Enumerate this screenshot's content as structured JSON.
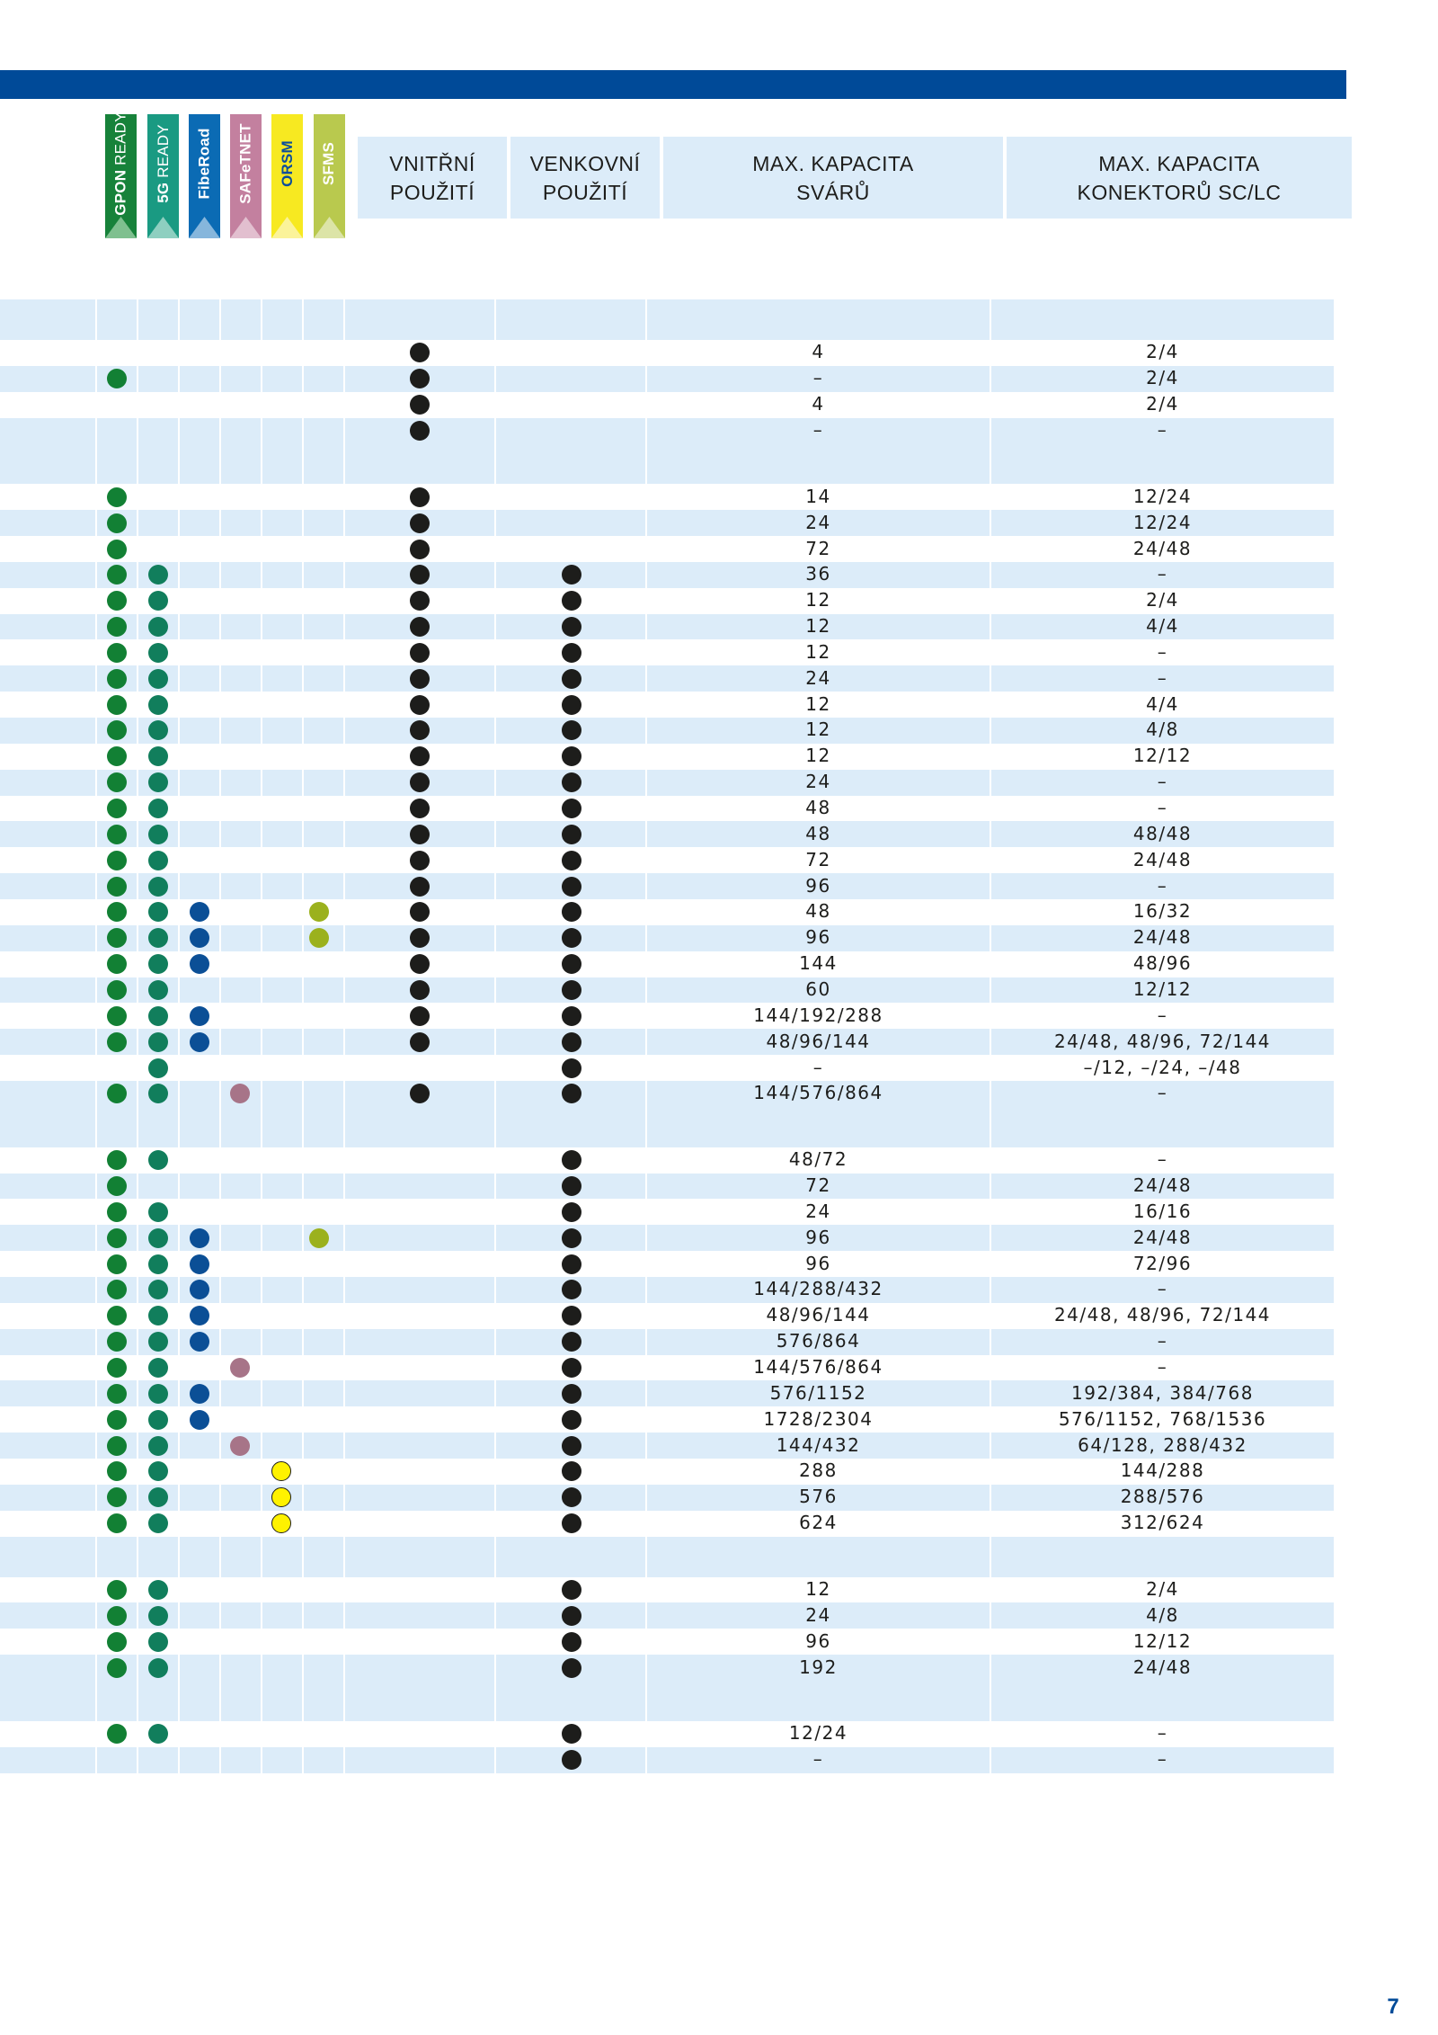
{
  "brand_colors": {
    "bar": "#004a98",
    "header_bg": "#dcecf9",
    "row_bg": "#dcecf9"
  },
  "badges": [
    {
      "id": "gpon",
      "strong": "GPON",
      "light": " READY",
      "bg": "#17823a",
      "fg": "#ffffff",
      "arrow": "#7fc08f"
    },
    {
      "id": "5g",
      "strong": "5G",
      "light": " READY",
      "bg": "#1a9a82",
      "fg": "#ffffff",
      "arrow": "#8ecfc0"
    },
    {
      "id": "fiberoad",
      "strong": "FibeRoad",
      "light": "",
      "bg": "#0b6bb4",
      "fg": "#ffffff",
      "arrow": "#86b6dc"
    },
    {
      "id": "safetnet",
      "strong": "SAFeTNET",
      "light": "",
      "bg": "#c3809f",
      "fg": "#ffffff",
      "arrow": "#e2bfcf"
    },
    {
      "id": "orsm",
      "strong": "ORSM",
      "light": "",
      "bg": "#f7e921",
      "fg": "#0a4d9c",
      "arrow": "#fbf39a"
    },
    {
      "id": "sfms",
      "strong": "SFMS",
      "light": "",
      "bg": "#b9c94e",
      "fg": "#ffffff",
      "arrow": "#dce4a7"
    }
  ],
  "headers": {
    "indoor": [
      "VNITŘNÍ",
      "POUŽITÍ"
    ],
    "outdoor": [
      "VENKOVNÍ",
      "POUŽITÍ"
    ],
    "splices": [
      "MAX. KAPACITA",
      "SVÁRŮ"
    ],
    "connectors": [
      "MAX. KAPACITA",
      "KONEKTORŮ SC/LC"
    ]
  },
  "dot_colors": {
    "g": "#128034",
    "t": "#117e5c",
    "b": "#0b4f96",
    "p": "#a77488",
    "y": "#fff200",
    "l": "#9bb11d",
    "k": "#1d1d1b"
  },
  "rows": [
    {
      "sec": true
    },
    {
      "dots": "",
      "in": true,
      "out": false,
      "spl": "4",
      "con": "2/4"
    },
    {
      "dots": "g",
      "in": true,
      "out": false,
      "spl": "–",
      "con": "2/4"
    },
    {
      "dots": "",
      "in": true,
      "out": false,
      "spl": "4",
      "con": "2/4"
    },
    {
      "dots": "",
      "in": true,
      "out": false,
      "spl": "–",
      "con": "–"
    },
    {
      "sec": true
    },
    {
      "dots": "g",
      "in": true,
      "out": false,
      "spl": "14",
      "con": "12/24"
    },
    {
      "dots": "g",
      "in": true,
      "out": false,
      "spl": "24",
      "con": "12/24"
    },
    {
      "dots": "g",
      "in": true,
      "out": false,
      "spl": "72",
      "con": "24/48"
    },
    {
      "dots": "gt",
      "in": true,
      "out": true,
      "spl": "36",
      "con": "–"
    },
    {
      "dots": "gt",
      "in": true,
      "out": true,
      "spl": "12",
      "con": "2/4"
    },
    {
      "dots": "gt",
      "in": true,
      "out": true,
      "spl": "12",
      "con": "4/4"
    },
    {
      "dots": "gt",
      "in": true,
      "out": true,
      "spl": "12",
      "con": "–"
    },
    {
      "dots": "gt",
      "in": true,
      "out": true,
      "spl": "24",
      "con": "–"
    },
    {
      "dots": "gt",
      "in": true,
      "out": true,
      "spl": "12",
      "con": "4/4"
    },
    {
      "dots": "gt",
      "in": true,
      "out": true,
      "spl": "12",
      "con": "4/8"
    },
    {
      "dots": "gt",
      "in": true,
      "out": true,
      "spl": "12",
      "con": "12/12"
    },
    {
      "dots": "gt",
      "in": true,
      "out": true,
      "spl": "24",
      "con": "–"
    },
    {
      "dots": "gt",
      "in": true,
      "out": true,
      "spl": "48",
      "con": "–"
    },
    {
      "dots": "gt",
      "in": true,
      "out": true,
      "spl": "48",
      "con": "48/48"
    },
    {
      "dots": "gt",
      "in": true,
      "out": true,
      "spl": "72",
      "con": "24/48"
    },
    {
      "dots": "gt",
      "in": true,
      "out": true,
      "spl": "96",
      "con": "–"
    },
    {
      "dots": "gtbl",
      "in": true,
      "out": true,
      "spl": "48",
      "con": "16/32"
    },
    {
      "dots": "gtbl",
      "in": true,
      "out": true,
      "spl": "96",
      "con": "24/48"
    },
    {
      "dots": "gtb",
      "in": true,
      "out": true,
      "spl": "144",
      "con": "48/96"
    },
    {
      "dots": "gt",
      "in": true,
      "out": true,
      "spl": "60",
      "con": "12/12"
    },
    {
      "dots": "gtb",
      "in": true,
      "out": true,
      "spl": "144/192/288",
      "con": "–"
    },
    {
      "dots": "gtb",
      "in": true,
      "out": true,
      "spl": "48/96/144",
      "con": "24/48, 48/96, 72/144"
    },
    {
      "dots": "t",
      "in": false,
      "out": true,
      "spl": "–",
      "con": "–/12, –/24, –/48"
    },
    {
      "dots": "gtp",
      "in": true,
      "out": true,
      "spl": "144/576/864",
      "con": "–"
    },
    {
      "sec": true
    },
    {
      "dots": "gt",
      "in": false,
      "out": true,
      "spl": "48/72",
      "con": "–"
    },
    {
      "dots": "g",
      "in": false,
      "out": true,
      "spl": "72",
      "con": "24/48"
    },
    {
      "dots": "gt",
      "in": false,
      "out": true,
      "spl": "24",
      "con": "16/16"
    },
    {
      "dots": "gtbl",
      "in": false,
      "out": true,
      "spl": "96",
      "con": "24/48"
    },
    {
      "dots": "gtb",
      "in": false,
      "out": true,
      "spl": "96",
      "con": "72/96"
    },
    {
      "dots": "gtb",
      "in": false,
      "out": true,
      "spl": "144/288/432",
      "con": "–"
    },
    {
      "dots": "gtb",
      "in": false,
      "out": true,
      "spl": "48/96/144",
      "con": "24/48, 48/96, 72/144"
    },
    {
      "dots": "gtb",
      "in": false,
      "out": true,
      "spl": "576/864",
      "con": "–"
    },
    {
      "dots": "gtp",
      "in": false,
      "out": true,
      "spl": "144/576/864",
      "con": "–"
    },
    {
      "dots": "gtb",
      "in": false,
      "out": true,
      "spl": "576/1152",
      "con": "192/384, 384/768"
    },
    {
      "dots": "gtb",
      "in": false,
      "out": true,
      "spl": "1728/2304",
      "con": "576/1152, 768/1536"
    },
    {
      "dots": "gtp",
      "in": false,
      "out": true,
      "spl": "144/432",
      "con": "64/128, 288/432"
    },
    {
      "dots": "gty",
      "in": false,
      "out": true,
      "spl": "288",
      "con": "144/288"
    },
    {
      "dots": "gty",
      "in": false,
      "out": true,
      "spl": "576",
      "con": "288/576"
    },
    {
      "dots": "gty",
      "in": false,
      "out": true,
      "spl": "624",
      "con": "312/624"
    },
    {
      "sec": true
    },
    {
      "dots": "gt",
      "in": false,
      "out": true,
      "spl": "12",
      "con": "2/4"
    },
    {
      "dots": "gt",
      "in": false,
      "out": true,
      "spl": "24",
      "con": "4/8"
    },
    {
      "dots": "gt",
      "in": false,
      "out": true,
      "spl": "96",
      "con": "12/12"
    },
    {
      "dots": "gt",
      "in": false,
      "out": true,
      "spl": "192",
      "con": "24/48"
    },
    {
      "sec": true
    },
    {
      "dots": "gt",
      "in": false,
      "out": true,
      "spl": "12/24",
      "con": "–"
    },
    {
      "dots": "",
      "in": false,
      "out": true,
      "spl": "–",
      "con": "–"
    }
  ],
  "page_number": "7"
}
